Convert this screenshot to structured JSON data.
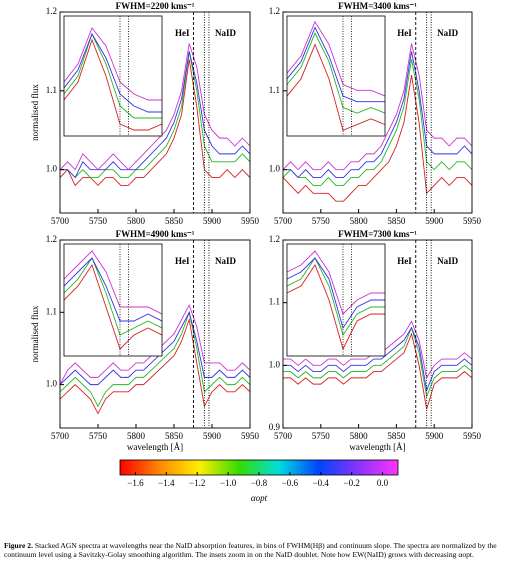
{
  "chart_data": [
    {
      "type": "line",
      "title": "FWHM=2200 kms⁻¹",
      "ylabel": "normalised flux",
      "x": [
        5700,
        5710,
        5720,
        5730,
        5740,
        5750,
        5760,
        5770,
        5780,
        5790,
        5800,
        5810,
        5820,
        5830,
        5840,
        5850,
        5860,
        5870,
        5880,
        5890,
        5900,
        5910,
        5920,
        5930,
        5940,
        5950
      ],
      "xlim": [
        5700,
        5950
      ],
      "xticks": [
        5700,
        5750,
        5800,
        5850,
        5900,
        5950
      ],
      "ylim": [
        0.945,
        1.2
      ],
      "yticks": [
        {
          "value": 1,
          "label": "1.0"
        },
        1.1,
        1.2
      ],
      "annotations": [
        "HeI",
        "NaID"
      ],
      "line_x": [
        5875.6,
        5890,
        5896
      ],
      "line_styles": [
        "dashed",
        "dotted",
        "dotted"
      ],
      "inset": {
        "xlim": [
          5850,
          5920
        ],
        "ylim": [
          0.98,
          1.18
        ]
      },
      "series": [
        {
          "color": "#d62020",
          "values": [
            0.99,
            1.0,
            0.98,
            0.99,
            0.99,
            0.98,
            0.99,
            0.99,
            0.98,
            0.98,
            0.99,
            0.99,
            1.0,
            1.01,
            1.02,
            1.04,
            1.07,
            1.14,
            1.08,
            1.0,
            0.99,
            0.99,
            1.0,
            0.99,
            1.0,
            0.99
          ]
        },
        {
          "color": "#22b822",
          "values": [
            1.0,
            1.0,
            0.99,
            1.0,
            0.99,
            0.99,
            1.0,
            1.0,
            0.99,
            0.99,
            1.0,
            1.0,
            1.01,
            1.02,
            1.03,
            1.05,
            1.08,
            1.15,
            1.1,
            1.03,
            1.01,
            1.01,
            1.01,
            1.01,
            1.02,
            1.01
          ]
        },
        {
          "color": "#3030f0",
          "values": [
            1.0,
            1.0,
            0.99,
            1.01,
            1.0,
            1.0,
            1.0,
            1.01,
            1.0,
            1.0,
            1.0,
            1.01,
            1.02,
            1.03,
            1.04,
            1.06,
            1.09,
            1.15,
            1.11,
            1.05,
            1.03,
            1.02,
            1.02,
            1.02,
            1.03,
            1.02
          ]
        },
        {
          "color": "#cc33cc",
          "values": [
            1.0,
            1.01,
            1.0,
            1.02,
            1.01,
            1.0,
            1.01,
            1.02,
            1.01,
            1.0,
            1.01,
            1.02,
            1.03,
            1.04,
            1.05,
            1.07,
            1.1,
            1.16,
            1.13,
            1.07,
            1.05,
            1.04,
            1.04,
            1.03,
            1.04,
            1.03
          ]
        }
      ]
    },
    {
      "type": "line",
      "title": "FWHM=3400 kms⁻¹",
      "x": [
        5700,
        5710,
        5720,
        5730,
        5740,
        5750,
        5760,
        5770,
        5780,
        5790,
        5800,
        5810,
        5820,
        5830,
        5840,
        5850,
        5860,
        5870,
        5880,
        5890,
        5900,
        5910,
        5920,
        5930,
        5940,
        5950
      ],
      "xlim": [
        5700,
        5950
      ],
      "xticks": [
        5700,
        5750,
        5800,
        5850,
        5900,
        5950
      ],
      "ylim": [
        0.945,
        1.2
      ],
      "yticks": [
        {
          "value": 1,
          "label": "1.0"
        },
        1.1,
        1.2
      ],
      "annotations": [
        "HeI",
        "NaID"
      ],
      "line_x": [
        5875.6,
        5890,
        5896
      ],
      "line_styles": [
        "dashed",
        "dotted",
        "dotted"
      ],
      "inset": {
        "xlim": [
          5850,
          5920
        ],
        "ylim": [
          0.96,
          1.17
        ]
      },
      "series": [
        {
          "color": "#d62020",
          "values": [
            0.99,
            0.98,
            0.97,
            0.98,
            0.97,
            0.97,
            0.97,
            0.96,
            0.96,
            0.97,
            0.98,
            0.98,
            0.99,
            1.0,
            1.01,
            1.03,
            1.06,
            1.12,
            1.06,
            0.97,
            0.98,
            0.99,
            0.98,
            0.99,
            0.99,
            0.98
          ]
        },
        {
          "color": "#22b822",
          "values": [
            0.99,
            1.0,
            0.99,
            0.99,
            0.98,
            0.98,
            0.99,
            0.98,
            0.98,
            0.99,
            0.99,
            1.0,
            1.0,
            1.01,
            1.03,
            1.05,
            1.08,
            1.14,
            1.09,
            1.01,
            1.0,
            1.01,
            1.0,
            1.01,
            1.01,
            1.0
          ]
        },
        {
          "color": "#3030f0",
          "values": [
            1.0,
            1.0,
            0.99,
            1.0,
            0.99,
            0.99,
            1.0,
            0.99,
            0.99,
            1.0,
            1.0,
            1.01,
            1.01,
            1.02,
            1.04,
            1.06,
            1.09,
            1.15,
            1.1,
            1.03,
            1.02,
            1.02,
            1.02,
            1.02,
            1.03,
            1.02
          ]
        },
        {
          "color": "#cc33cc",
          "values": [
            1.0,
            1.01,
            1.0,
            1.01,
            1.0,
            1.0,
            1.01,
            1.0,
            1.0,
            1.01,
            1.01,
            1.02,
            1.02,
            1.03,
            1.05,
            1.07,
            1.1,
            1.16,
            1.12,
            1.05,
            1.04,
            1.04,
            1.03,
            1.04,
            1.04,
            1.03
          ]
        }
      ]
    },
    {
      "type": "line",
      "title": "FWHM=4900 kms⁻¹",
      "ylabel": "normalised flux",
      "xlabel": "wavelength [Å]",
      "x": [
        5700,
        5710,
        5720,
        5730,
        5740,
        5750,
        5760,
        5770,
        5780,
        5790,
        5800,
        5810,
        5820,
        5830,
        5840,
        5850,
        5860,
        5870,
        5880,
        5890,
        5900,
        5910,
        5920,
        5930,
        5940,
        5950
      ],
      "xlim": [
        5700,
        5950
      ],
      "xticks": [
        5700,
        5750,
        5800,
        5850,
        5900,
        5950
      ],
      "ylim": [
        0.94,
        1.2
      ],
      "yticks": [
        {
          "value": 1,
          "label": "1.0"
        },
        1.1,
        1.2
      ],
      "annotations": [
        "HeI",
        "NaID"
      ],
      "line_x": [
        5875.6,
        5890,
        5896
      ],
      "line_styles": [
        "dashed",
        "dotted",
        "dotted"
      ],
      "inset": {
        "xlim": [
          5850,
          5920
        ],
        "ylim": [
          0.96,
          1.12
        ]
      },
      "series": [
        {
          "color": "#d62020",
          "values": [
            0.98,
            0.99,
            1.0,
            0.99,
            0.98,
            0.96,
            0.98,
            0.99,
            0.99,
            0.99,
            1.0,
            1.0,
            1.01,
            1.02,
            1.03,
            1.04,
            1.06,
            1.09,
            1.03,
            0.97,
            0.99,
            1.0,
            0.99,
            0.99,
            1.0,
            0.99
          ]
        },
        {
          "color": "#22b822",
          "values": [
            0.99,
            1.0,
            1.01,
            1.0,
            0.99,
            0.97,
            0.99,
            1.0,
            1.0,
            1.0,
            1.01,
            1.01,
            1.02,
            1.03,
            1.04,
            1.05,
            1.07,
            1.1,
            1.05,
            0.99,
            1.0,
            1.01,
            1.0,
            1.0,
            1.01,
            1.0
          ]
        },
        {
          "color": "#3030f0",
          "values": [
            1.0,
            1.01,
            1.02,
            1.01,
            1.0,
            1.0,
            1.01,
            1.02,
            1.01,
            1.01,
            1.02,
            1.02,
            1.03,
            1.04,
            1.05,
            1.06,
            1.08,
            1.1,
            1.06,
            1.01,
            1.01,
            1.02,
            1.01,
            1.01,
            1.02,
            1.01
          ]
        },
        {
          "color": "#cc33cc",
          "values": [
            1.0,
            1.02,
            1.03,
            1.02,
            1.01,
            1.01,
            1.02,
            1.03,
            1.02,
            1.02,
            1.03,
            1.03,
            1.04,
            1.05,
            1.06,
            1.07,
            1.09,
            1.11,
            1.08,
            1.03,
            1.03,
            1.03,
            1.02,
            1.02,
            1.03,
            1.02
          ]
        }
      ]
    },
    {
      "type": "line",
      "title": "FWHM=7300 kms⁻¹",
      "xlabel": "wavelength [Å]",
      "x": [
        5700,
        5710,
        5720,
        5730,
        5740,
        5750,
        5760,
        5770,
        5780,
        5790,
        5800,
        5810,
        5820,
        5830,
        5840,
        5850,
        5860,
        5870,
        5880,
        5890,
        5900,
        5910,
        5920,
        5930,
        5940,
        5950
      ],
      "xlim": [
        5700,
        5950
      ],
      "xticks": [
        5700,
        5750,
        5800,
        5850,
        5900,
        5950
      ],
      "ylim": [
        0.9,
        1.2
      ],
      "yticks": [
        0.9,
        {
          "value": 1,
          "label": "1.0"
        },
        1.1,
        1.2
      ],
      "annotations": [
        "HeI",
        "NaID"
      ],
      "line_x": [
        5875.6,
        5890,
        5896
      ],
      "line_styles": [
        "dashed",
        "dotted",
        "dotted"
      ],
      "inset": {
        "xlim": [
          5850,
          5920
        ],
        "ylim": [
          0.92,
          1.08
        ]
      },
      "series": [
        {
          "color": "#d62020",
          "values": [
            0.98,
            0.98,
            0.97,
            0.98,
            0.97,
            0.97,
            0.98,
            0.98,
            0.97,
            0.98,
            0.98,
            0.98,
            0.99,
            0.99,
            1.0,
            1.01,
            1.02,
            1.05,
            1.0,
            0.93,
            0.97,
            0.98,
            0.98,
            0.98,
            0.99,
            0.98
          ]
        },
        {
          "color": "#22b822",
          "values": [
            0.99,
            0.99,
            0.98,
            0.99,
            0.98,
            0.98,
            0.99,
            0.99,
            0.98,
            0.99,
            0.99,
            0.99,
            1.0,
            1.0,
            1.01,
            1.02,
            1.03,
            1.06,
            1.02,
            0.95,
            0.98,
            0.99,
            0.99,
            0.99,
            1.0,
            0.99
          ]
        },
        {
          "color": "#3030f0",
          "values": [
            1.0,
            1.0,
            0.99,
            1.0,
            0.99,
            0.99,
            1.0,
            1.0,
            0.99,
            1.0,
            1.0,
            1.0,
            1.01,
            1.01,
            1.02,
            1.03,
            1.04,
            1.06,
            1.03,
            0.96,
            0.99,
            1.0,
            1.0,
            1.0,
            1.01,
            1.0
          ]
        },
        {
          "color": "#cc33cc",
          "values": [
            1.01,
            1.01,
            1.0,
            1.01,
            1.0,
            1.0,
            1.01,
            1.01,
            1.0,
            1.01,
            1.01,
            1.01,
            1.02,
            1.02,
            1.03,
            1.04,
            1.05,
            1.07,
            1.04,
            0.98,
            1.0,
            1.01,
            1.01,
            1.01,
            1.02,
            1.01
          ]
        }
      ]
    }
  ],
  "colorbar": {
    "label": "αopt",
    "clim": [
      -1.7,
      0.1
    ],
    "colormap": [
      "#ff0000",
      "#ff8800",
      "#ffee00",
      "#33dd00",
      "#00dddd",
      "#0044ff",
      "#8833ff",
      "#ff33ff"
    ],
    "ticks": [
      {
        "value": -1.6,
        "label": "−1.6"
      },
      {
        "value": -1.4,
        "label": "−1.4"
      },
      {
        "value": -1.2,
        "label": "−1.2"
      },
      {
        "value": -1,
        "label": "−1.0"
      },
      {
        "value": -0.8,
        "label": "−0.8"
      },
      {
        "value": -0.6,
        "label": "−0.6"
      },
      {
        "value": -0.4,
        "label": "−0.4"
      },
      {
        "value": -0.2,
        "label": "−0.2"
      },
      {
        "value": 0,
        "label": "0.0"
      }
    ]
  },
  "caption": {
    "label": "Figure 2.",
    "text": "Stacked AGN spectra at wavelengths near the NaID absorption features, in bins of FWHM(Hβ) and continuum slope. The spectra are normalized by the continuum level using a Savitzky-Golay smoothing algorithm. The insets zoom in on the NaID doublet. Note how EW(NaID) grows with decreasing αopt."
  }
}
